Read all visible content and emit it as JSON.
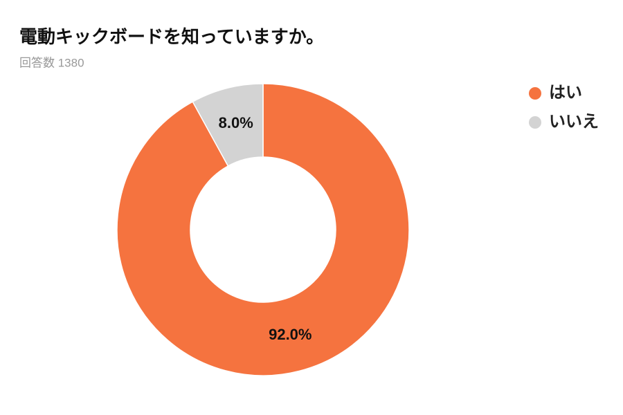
{
  "chart_data": {
    "type": "donut",
    "title": "電動キックボードを知っていますか。",
    "subtitle": "回答数 1380",
    "series": [
      {
        "name": "はい",
        "color": "#f5733f",
        "values": [
          92
        ],
        "value_labels": [
          "92.0%"
        ]
      },
      {
        "name": "いいえ",
        "color": "#d3d3d3",
        "values": [
          8
        ],
        "value_labels": [
          "8.0%"
        ]
      }
    ],
    "legend": "top-right"
  }
}
